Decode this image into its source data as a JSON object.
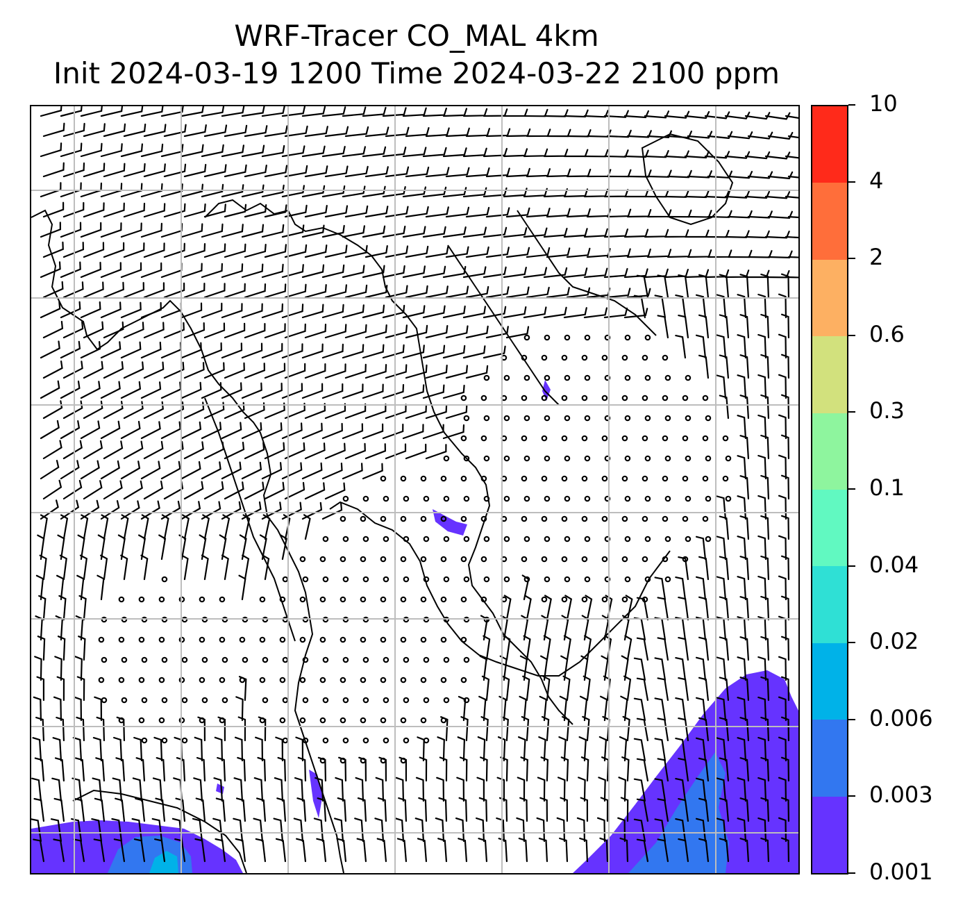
{
  "title": {
    "line1": "WRF-Tracer CO_MAL 4km",
    "line2": "Init 2024-03-19 1200 Time 2024-03-22 2100 ppm"
  },
  "map": {
    "variable": "CO_MAL tracer",
    "wind_barbs": "black",
    "grid": "on",
    "coastlines": "black"
  },
  "colorbar": {
    "ticks": [
      "10",
      "4",
      "2",
      "0.6",
      "0.3",
      "0.1",
      "0.04",
      "0.02",
      "0.006",
      "0.003",
      "0.001"
    ],
    "colors": [
      "#ff2a1a",
      "#ff6e3a",
      "#fdb062",
      "#d2e17d",
      "#8ef59e",
      "#61f9c1",
      "#2fe0d5",
      "#00b2e8",
      "#3277f0",
      "#6633ff"
    ]
  }
}
